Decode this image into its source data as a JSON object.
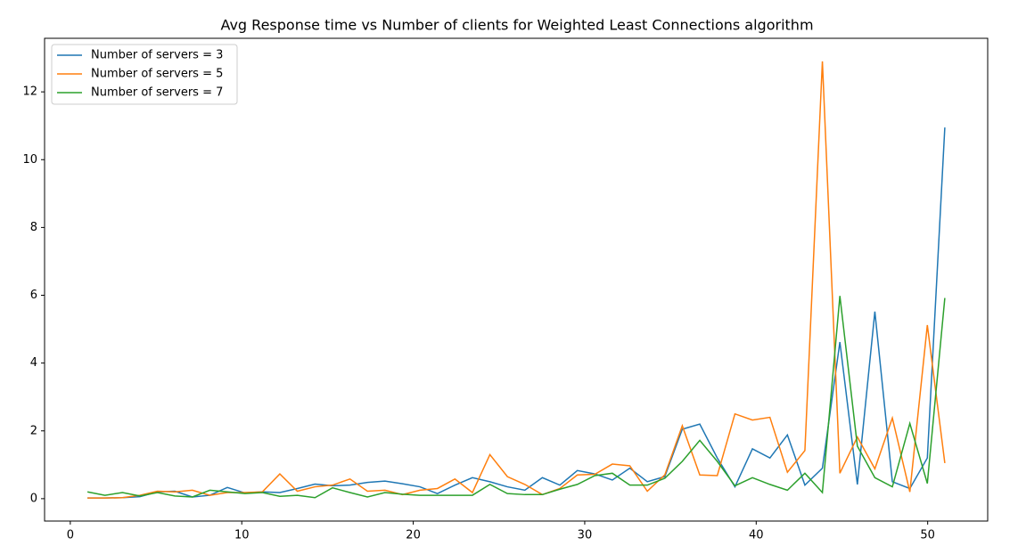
{
  "chart_data": {
    "type": "line",
    "title": "Avg Response time vs Number of clients for Weighted Least Connections algorithm",
    "x": [
      1.0,
      2.02,
      3.04,
      4.06,
      5.08,
      6.1,
      7.12,
      8.14,
      9.16,
      10.18,
      11.2,
      12.22,
      13.24,
      14.27,
      15.29,
      16.31,
      17.33,
      18.35,
      19.37,
      20.39,
      21.41,
      22.43,
      23.45,
      24.47,
      25.49,
      26.51,
      27.53,
      28.55,
      29.57,
      30.59,
      31.61,
      32.63,
      33.65,
      34.67,
      35.69,
      36.71,
      37.73,
      38.76,
      39.78,
      40.8,
      41.82,
      42.84,
      43.86,
      44.88,
      45.9,
      46.92,
      47.94,
      48.96,
      49.98,
      51.0
    ],
    "series": [
      {
        "name": "Number of servers = 3",
        "color": "#1f77b4",
        "values": [
          0.02,
          0.02,
          0.03,
          0.06,
          0.2,
          0.22,
          0.05,
          0.1,
          0.33,
          0.17,
          0.2,
          0.18,
          0.3,
          0.43,
          0.38,
          0.4,
          0.48,
          0.52,
          0.44,
          0.35,
          0.15,
          0.4,
          0.62,
          0.5,
          0.35,
          0.25,
          0.62,
          0.4,
          0.83,
          0.73,
          0.55,
          0.9,
          0.5,
          0.65,
          2.05,
          2.2,
          1.2,
          0.35,
          1.47,
          1.2,
          1.88,
          0.4,
          0.9,
          4.62,
          0.42,
          5.52,
          0.5,
          0.3,
          1.2,
          10.95
        ]
      },
      {
        "name": "Number of servers = 5",
        "color": "#ff7f0e",
        "values": [
          0.02,
          0.02,
          0.03,
          0.1,
          0.22,
          0.2,
          0.25,
          0.1,
          0.18,
          0.18,
          0.2,
          0.73,
          0.22,
          0.35,
          0.4,
          0.58,
          0.22,
          0.25,
          0.12,
          0.25,
          0.3,
          0.58,
          0.18,
          1.3,
          0.65,
          0.42,
          0.12,
          0.3,
          0.7,
          0.72,
          1.02,
          0.97,
          0.22,
          0.7,
          2.15,
          0.7,
          0.68,
          2.5,
          2.32,
          2.4,
          0.78,
          1.42,
          12.9,
          0.75,
          1.82,
          0.88,
          2.38,
          0.2,
          5.12,
          1.05
        ]
      },
      {
        "name": "Number of servers = 7",
        "color": "#2ca02c",
        "values": [
          0.2,
          0.1,
          0.18,
          0.08,
          0.18,
          0.08,
          0.05,
          0.25,
          0.2,
          0.15,
          0.18,
          0.07,
          0.1,
          0.03,
          0.32,
          0.18,
          0.05,
          0.18,
          0.13,
          0.1,
          0.1,
          0.1,
          0.1,
          0.42,
          0.15,
          0.12,
          0.12,
          0.28,
          0.42,
          0.68,
          0.75,
          0.4,
          0.4,
          0.6,
          1.1,
          1.72,
          1.1,
          0.38,
          0.62,
          0.42,
          0.25,
          0.75,
          0.18,
          5.98,
          1.55,
          0.62,
          0.35,
          2.22,
          0.45,
          5.92
        ]
      }
    ],
    "xlim": [
      -1.5,
      53.5
    ],
    "xticks": [
      0,
      10,
      20,
      30,
      40,
      50
    ],
    "ylim": [
      -0.66,
      13.58
    ],
    "yticks": [
      0,
      2,
      4,
      6,
      8,
      10,
      12
    ],
    "legend": "upper left",
    "grid": false
  }
}
